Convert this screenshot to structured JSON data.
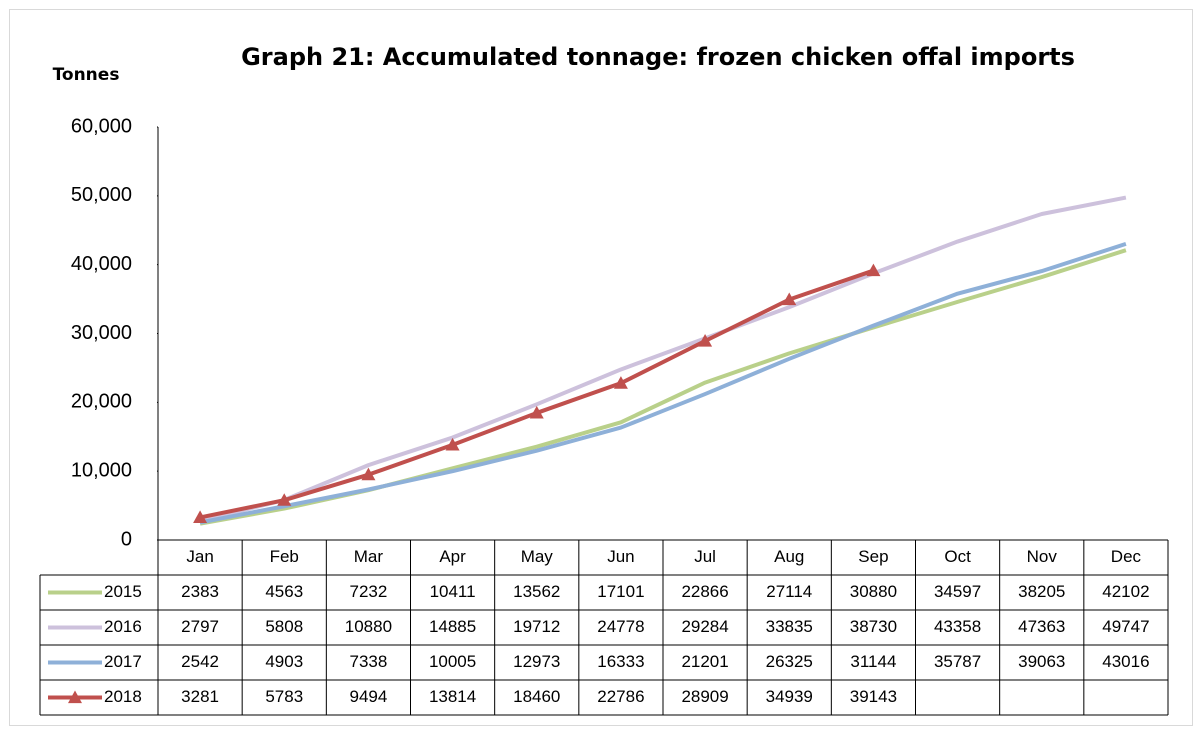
{
  "chart_data": {
    "type": "line",
    "title": "Graph 21: Accumulated tonnage: frozen chicken offal imports",
    "y_label": "Tonnes",
    "categories": [
      "Jan",
      "Feb",
      "Mar",
      "Apr",
      "May",
      "Jun",
      "Jul",
      "Aug",
      "Sep",
      "Oct",
      "Nov",
      "Dec"
    ],
    "series": [
      {
        "name": "2015",
        "color": "#b9d08a",
        "values": [
          2383,
          4563,
          7232,
          10411,
          13562,
          17101,
          22866,
          27114,
          30880,
          34597,
          38205,
          42102
        ]
      },
      {
        "name": "2016",
        "color": "#cdc1dc",
        "values": [
          2797,
          5808,
          10880,
          14885,
          19712,
          24778,
          29284,
          33835,
          38730,
          43358,
          47363,
          49747
        ]
      },
      {
        "name": "2017",
        "color": "#8eb0d8",
        "values": [
          2542,
          4903,
          7338,
          10005,
          12973,
          16333,
          21201,
          26325,
          31144,
          35787,
          39063,
          43016
        ]
      },
      {
        "name": "2018",
        "color": "#c0504d",
        "marker": "triangle",
        "values": [
          3281,
          5783,
          9494,
          13814,
          18460,
          22786,
          28909,
          34939,
          39143,
          null,
          null,
          null
        ]
      }
    ],
    "ylim": [
      0,
      60000
    ],
    "yticks": [
      0,
      {
        "value": 10000,
        "label": "10,000"
      },
      {
        "value": 20000,
        "label": "20,000"
      },
      {
        "value": 30000,
        "label": "30,000"
      },
      {
        "value": 40000,
        "label": "40,000"
      },
      {
        "value": 50000,
        "label": "50,000"
      },
      {
        "value": 60000,
        "label": "60,000"
      }
    ],
    "grid": false,
    "data_table": true
  }
}
